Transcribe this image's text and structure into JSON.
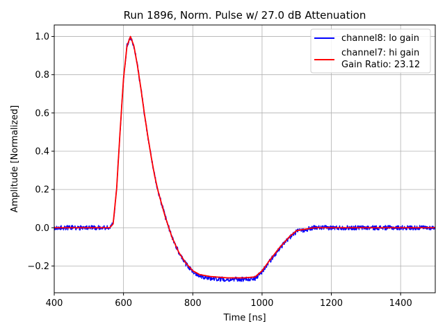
{
  "chart_data": {
    "type": "line",
    "title": "Run 1896, Norm. Pulse w/ 27.0 dB Attenuation",
    "xlabel": "Time [ns]",
    "ylabel": "Amplitude [Normalized]",
    "xlim": [
      400,
      1500
    ],
    "ylim": [
      -0.34,
      1.06
    ],
    "xticks": [
      400,
      600,
      800,
      1000,
      1200,
      1400
    ],
    "yticks": [
      -0.2,
      0.0,
      0.2,
      0.4,
      0.6,
      0.8,
      1.0
    ],
    "ytick_labels": [
      "−0.2",
      "0.0",
      "0.2",
      "0.4",
      "0.6",
      "0.8",
      "1.0"
    ],
    "grid": true,
    "legend_position": "top-right",
    "series": [
      {
        "name": "channel8: lo gain",
        "color": "#0000ff",
        "noise": 0.012,
        "x": [
          400,
          520,
          560,
          570,
          580,
          590,
          600,
          610,
          620,
          630,
          640,
          650,
          660,
          670,
          680,
          690,
          700,
          720,
          740,
          760,
          780,
          800,
          820,
          850,
          900,
          950,
          980,
          1000,
          1020,
          1050,
          1080,
          1100,
          1150,
          1200,
          1300,
          1400,
          1500
        ],
        "y": [
          0.0,
          0.0,
          0.0,
          0.02,
          0.2,
          0.5,
          0.78,
          0.95,
          0.995,
          0.95,
          0.85,
          0.73,
          0.6,
          0.48,
          0.37,
          0.27,
          0.19,
          0.06,
          -0.05,
          -0.13,
          -0.19,
          -0.23,
          -0.25,
          -0.265,
          -0.27,
          -0.27,
          -0.265,
          -0.23,
          -0.18,
          -0.11,
          -0.05,
          -0.02,
          0.0,
          0.0,
          0.0,
          0.0,
          0.0
        ]
      },
      {
        "name": "channel7: hi gain",
        "color": "#ff0000",
        "noise": 0.0,
        "x": [
          400,
          520,
          560,
          570,
          580,
          590,
          600,
          610,
          620,
          630,
          640,
          650,
          660,
          670,
          680,
          690,
          700,
          720,
          740,
          760,
          780,
          800,
          820,
          850,
          900,
          950,
          980,
          1000,
          1020,
          1050,
          1080,
          1100,
          1150,
          1200,
          1300,
          1400,
          1500
        ],
        "y": [
          0.0,
          0.0,
          0.0,
          0.02,
          0.2,
          0.5,
          0.78,
          0.95,
          1.0,
          0.95,
          0.85,
          0.73,
          0.6,
          0.48,
          0.37,
          0.27,
          0.19,
          0.06,
          -0.05,
          -0.13,
          -0.185,
          -0.225,
          -0.245,
          -0.255,
          -0.262,
          -0.262,
          -0.257,
          -0.225,
          -0.175,
          -0.105,
          -0.045,
          -0.015,
          0.0,
          0.0,
          0.0,
          0.0,
          0.0
        ]
      }
    ],
    "legend_entries": [
      "channel8: lo gain",
      "channel7: hi gain"
    ],
    "annotation": "Gain Ratio: 23.12"
  }
}
